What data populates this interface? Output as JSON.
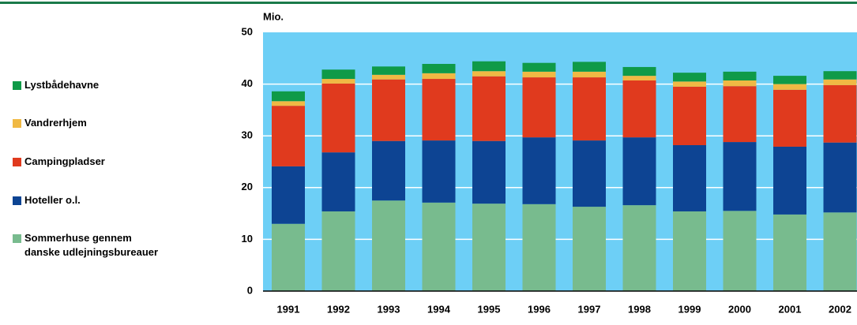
{
  "chart_data": {
    "type": "stacked_bar",
    "y_label": "Mio.",
    "categories": [
      "1991",
      "1992",
      "1993",
      "1994",
      "1995",
      "1996",
      "1997",
      "1998",
      "1999",
      "2000",
      "2001",
      "2002"
    ],
    "series": [
      {
        "name": "Sommerhuse gennem\ndanske udlejningsbureauer",
        "color": "#78bb8e",
        "values": [
          13.0,
          15.4,
          17.5,
          17.1,
          16.9,
          16.8,
          16.3,
          16.6,
          15.4,
          15.5,
          14.8,
          15.2
        ]
      },
      {
        "name": "Hoteller o.l.",
        "color": "#0d4493",
        "values": [
          11.1,
          11.4,
          11.5,
          12.0,
          12.1,
          12.9,
          12.8,
          13.1,
          12.8,
          13.3,
          13.1,
          13.5
        ]
      },
      {
        "name": "Campingpladser",
        "color": "#e03a1e",
        "values": [
          11.7,
          13.3,
          11.9,
          11.9,
          12.5,
          11.6,
          12.2,
          11.0,
          11.3,
          10.8,
          11.0,
          11.1
        ]
      },
      {
        "name": "Vandrerhjem",
        "color": "#f0b944",
        "values": [
          0.9,
          0.9,
          0.9,
          1.1,
          1.0,
          1.1,
          1.1,
          0.9,
          1.0,
          1.1,
          1.1,
          1.1
        ]
      },
      {
        "name": "Lystbådehavne",
        "color": "#0f9a48",
        "values": [
          1.9,
          1.8,
          1.6,
          1.8,
          1.9,
          1.7,
          1.9,
          1.7,
          1.7,
          1.7,
          1.6,
          1.6
        ]
      }
    ],
    "ylim": [
      0,
      50
    ],
    "yticks": [
      0,
      10,
      20,
      30,
      40,
      50
    ],
    "grid": true,
    "background": "#6dcff6",
    "rule_color": "#1a7a4a"
  }
}
